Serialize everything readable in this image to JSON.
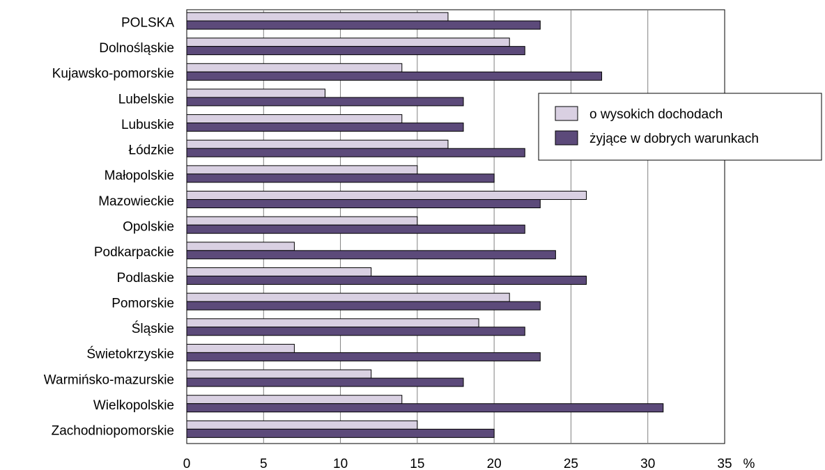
{
  "chart_data": {
    "type": "bar",
    "orientation": "horizontal",
    "categories": [
      "POLSKA",
      "Dolnośląskie",
      "Kujawsko-pomorskie",
      "Lubelskie",
      "Lubuskie",
      "Łódzkie",
      "Małopolskie",
      "Mazowieckie",
      "Opolskie",
      "Podkarpackie",
      "Podlaskie",
      "Pomorskie",
      "Śląskie",
      "Świetokrzyskie",
      "Warmińsko-mazurskie",
      "Wielkopolskie",
      "Zachodniopomorskie"
    ],
    "series": [
      {
        "name": "o wysokich dochodach",
        "color": "#d9d0e2",
        "values": [
          17,
          21,
          14,
          9,
          14,
          17,
          15,
          26,
          15,
          7,
          12,
          21,
          19,
          7,
          12,
          14,
          15
        ]
      },
      {
        "name": "żyjące w dobrych warunkach",
        "color": "#5c4a7a",
        "values": [
          23,
          22,
          27,
          18,
          18,
          22,
          20,
          23,
          22,
          24,
          26,
          23,
          22,
          23,
          18,
          31,
          20
        ]
      }
    ],
    "x_ticks": [
      "0",
      "5",
      "10",
      "15",
      "20",
      "25",
      "30",
      "35"
    ],
    "x_unit": "%",
    "xlim": [
      0,
      35
    ],
    "grid": "vertical",
    "legend_position": "right"
  }
}
